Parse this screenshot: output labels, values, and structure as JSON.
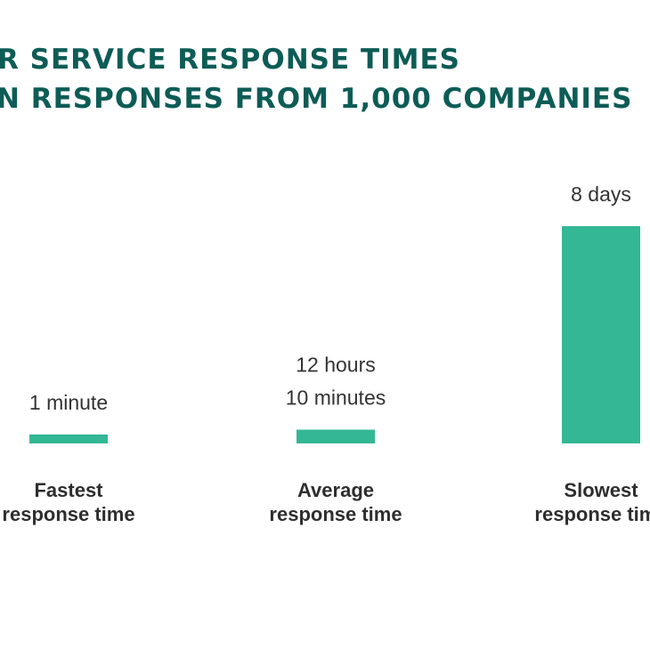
{
  "colors": {
    "title": "#0d5c56",
    "bar": "#33b795",
    "text": "#333333"
  },
  "chart_data": {
    "type": "bar",
    "title_lines": [
      "R SERVICE RESPONSE TIMES",
      "N RESPONSES FROM 1,000 COMPANIES"
    ],
    "xlabel": "",
    "ylabel": "",
    "unit": "minutes",
    "ylim": [
      0,
      11520
    ],
    "categories": [
      [
        "Fastest",
        "response time"
      ],
      [
        "Average",
        "response time"
      ],
      [
        "Slowest",
        "response time"
      ]
    ],
    "values": [
      1,
      730,
      11520
    ],
    "data_labels": [
      [
        "1 minute"
      ],
      [
        "12 hours",
        "10 minutes"
      ],
      [
        "8 days"
      ]
    ],
    "grid": false,
    "legend": "none"
  }
}
